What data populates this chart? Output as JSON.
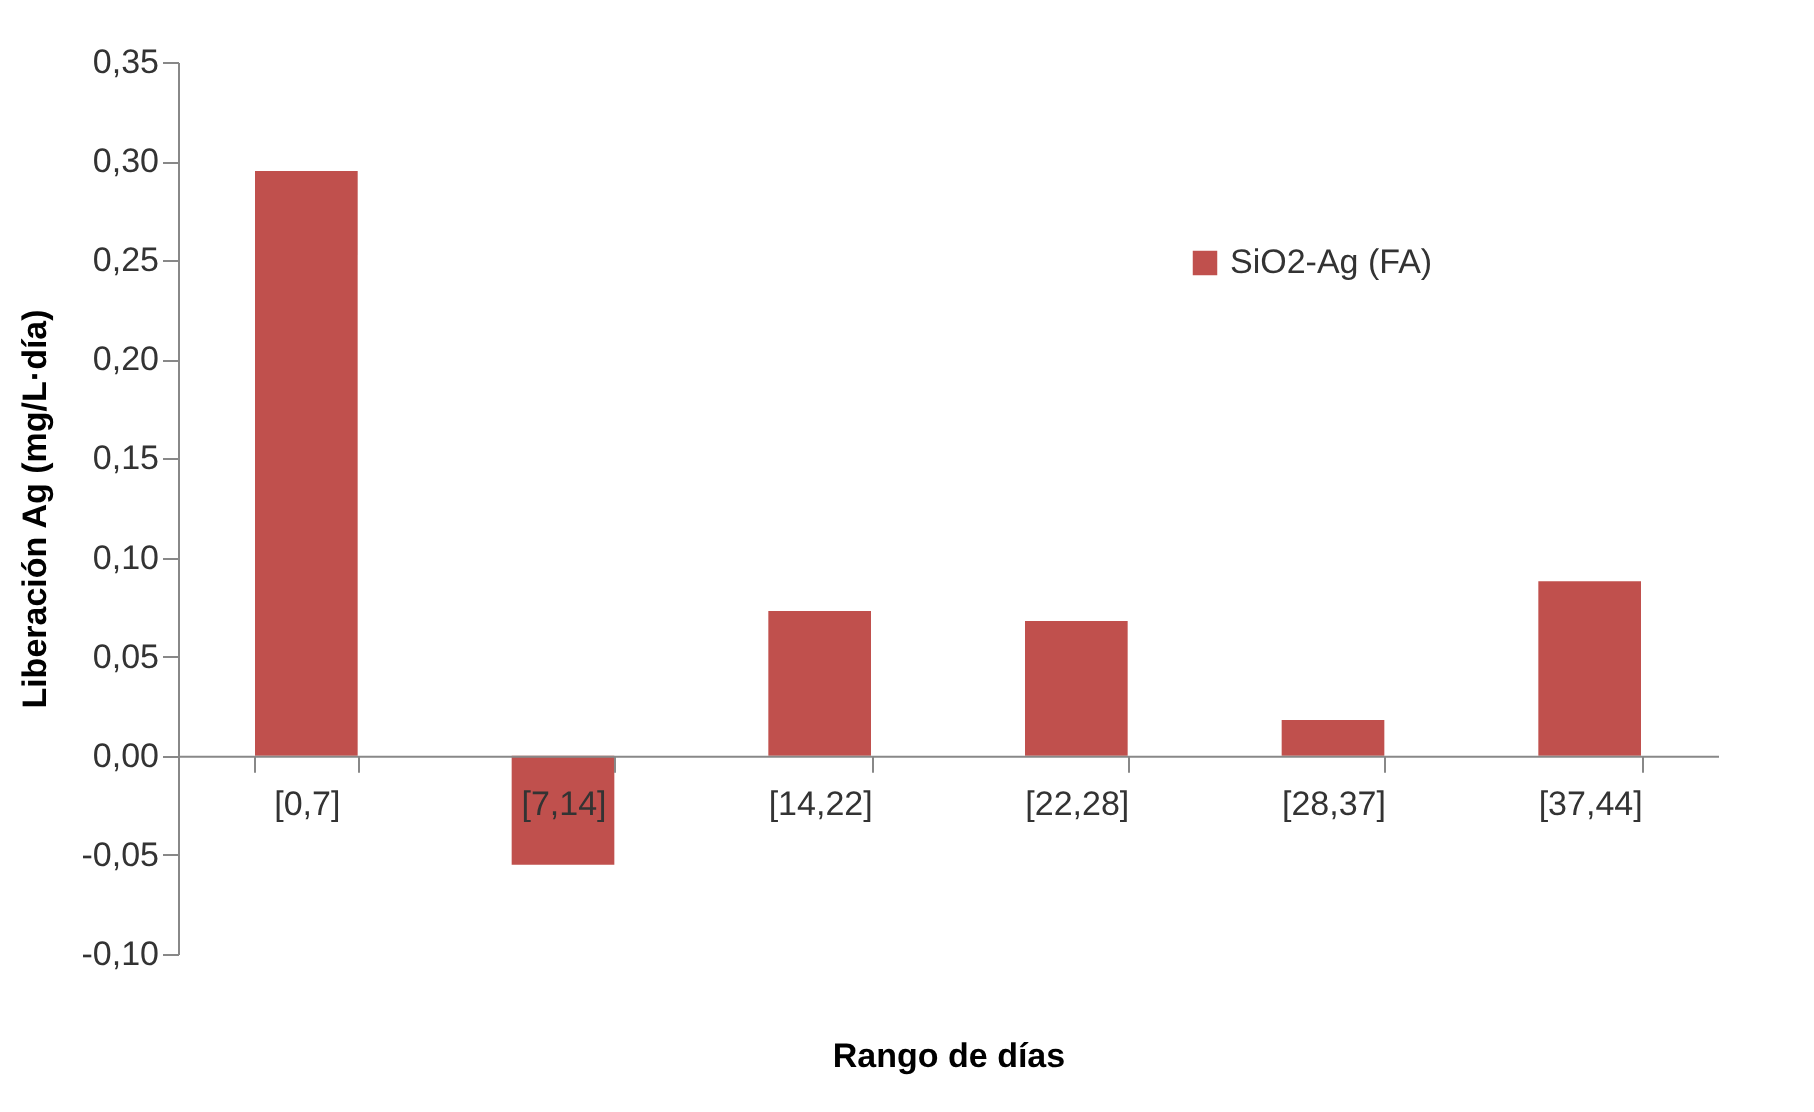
{
  "chart_data": {
    "type": "bar",
    "xlabel": "Rango de días",
    "ylabel": "Liberación Ag (mg/L·día)",
    "categories": [
      "[0,7]",
      "[7,14]",
      "[14,22]",
      "[22,28]",
      "[28,37]",
      "[37,44]"
    ],
    "series": [
      {
        "name": "SiO2-Ag (FA)",
        "color": "#c0504d",
        "values": [
          0.295,
          -0.055,
          0.073,
          0.068,
          0.018,
          0.088
        ]
      }
    ],
    "ylim": [
      -0.1,
      0.35
    ],
    "yticks": [
      {
        "value": -0.1,
        "label": "-0,10"
      },
      {
        "value": -0.05,
        "label": "-0,05"
      },
      {
        "value": 0,
        "label": "0,00"
      },
      {
        "value": 0.05,
        "label": "0,05"
      },
      {
        "value": 0.1,
        "label": "0,10"
      },
      {
        "value": 0.15,
        "label": "0,15"
      },
      {
        "value": 0.2,
        "label": "0,20"
      },
      {
        "value": 0.25,
        "label": "0,25"
      },
      {
        "value": 0.3,
        "label": "0,30"
      },
      {
        "value": 0.35,
        "label": "0,35"
      }
    ],
    "grid": false,
    "legend": "top right"
  }
}
